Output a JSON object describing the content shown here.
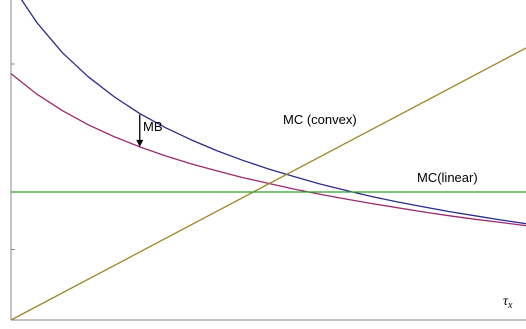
{
  "chart_data": {
    "type": "line",
    "title": "",
    "xlabel": "τ",
    "xlabel_subscript": "x",
    "ylabel": "",
    "xlim": [
      0,
      10
    ],
    "ylim": [
      0,
      10
    ],
    "grid": false,
    "legend": "none",
    "series": [
      {
        "key": "mb_upper",
        "name": "",
        "color": "#2b2b8e",
        "x": [
          0,
          0.5,
          1,
          1.5,
          2,
          2.5,
          3,
          3.5,
          4,
          4.5,
          5,
          5.5,
          6,
          6.5,
          7,
          7.5,
          8,
          8.5,
          9,
          9.5,
          10
        ],
        "y": [
          10.5,
          9.3,
          8.35,
          7.6,
          6.98,
          6.45,
          6.01,
          5.63,
          5.29,
          4.99,
          4.72,
          4.48,
          4.25,
          4.05,
          3.86,
          3.69,
          3.54,
          3.39,
          3.26,
          3.13,
          3.01
        ]
      },
      {
        "key": "mb_lower",
        "name": "",
        "color": "#9b2a6f",
        "x": [
          0,
          0.5,
          1,
          1.5,
          2,
          2.5,
          3,
          3.5,
          4,
          4.5,
          5,
          5.5,
          6,
          6.5,
          7,
          7.5,
          8,
          8.5,
          9,
          9.5,
          10
        ],
        "y": [
          7.7,
          7.06,
          6.54,
          6.1,
          5.73,
          5.41,
          5.13,
          4.88,
          4.66,
          4.45,
          4.27,
          4.09,
          3.93,
          3.78,
          3.64,
          3.51,
          3.38,
          3.26,
          3.15,
          3.05,
          2.95
        ]
      },
      {
        "key": "mc_convex",
        "name": "",
        "color": "#a0862a",
        "x": [
          0,
          10
        ],
        "y": [
          0,
          8.5
        ]
      },
      {
        "key": "mc_linear",
        "name": "",
        "color": "#2ea12e",
        "x": [
          0,
          10
        ],
        "y": [
          4.0,
          4.0
        ]
      }
    ],
    "annotations": {
      "mb": "MB",
      "mc_convex": "MC (convex)",
      "mc_linear": "MC(linear)"
    },
    "arrow": {
      "x": 2.5,
      "y_from": 6.45,
      "y_to": 5.41
    }
  }
}
